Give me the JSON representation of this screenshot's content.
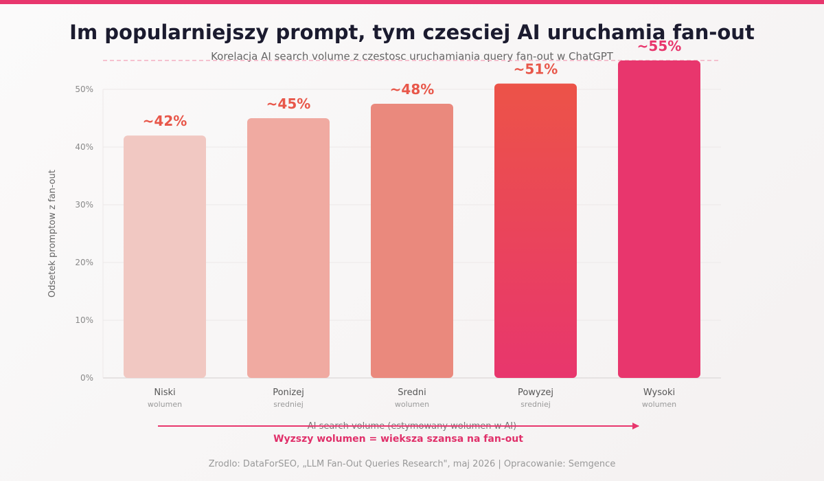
{
  "title": "Im popularniejszy prompt, tym czesciej AI uruchamia fan-out",
  "subtitle": "Korelacja AI search volume z czestosc uruchamiania query fan-out w ChatGPT",
  "note": "Wyzszy wolumen = wieksza szansa na fan-out",
  "source": "Zrodlo: DataForSEO, „LLM Fan-Out Queries Research\", maj 2026 | Opracowanie: Semgence",
  "colors": {
    "accent": "#e8366d",
    "bar_low": "#f1c8c2",
    "bar_below": "#f0aaa1",
    "bar_mid": "#ea897d",
    "bar_high_top": "#ec5348",
    "bar_high_bottom": "#e8366d",
    "label_red": "#e8574a",
    "label_pink": "#e8366d"
  },
  "chart_data": {
    "type": "bar",
    "title": "Im popularniejszy prompt, tym czesciej AI uruchamia fan-out",
    "xlabel": "AI search volume (estymowany wolumen w AI)",
    "ylabel": "Odsetek promptow z fan-out",
    "ylim": [
      0,
      50
    ],
    "yticks": [
      "0%",
      "10%",
      "20%",
      "30%",
      "40%",
      "50%"
    ],
    "ytick_values": [
      0,
      10,
      20,
      30,
      40,
      50
    ],
    "grid": true,
    "categories": [
      {
        "label": "Niski",
        "sublabel": "wolumen"
      },
      {
        "label": "Ponizej",
        "sublabel": "sredniej"
      },
      {
        "label": "Sredni",
        "sublabel": "wolumen"
      },
      {
        "label": "Powyzej",
        "sublabel": "sredniej"
      },
      {
        "label": "Wysoki",
        "sublabel": "wolumen"
      }
    ],
    "values": [
      42,
      45,
      47.5,
      51,
      55
    ],
    "data_labels": [
      "~42%",
      "~45%",
      "~48%",
      "~51%",
      "~55%"
    ],
    "reference_line": 55
  }
}
